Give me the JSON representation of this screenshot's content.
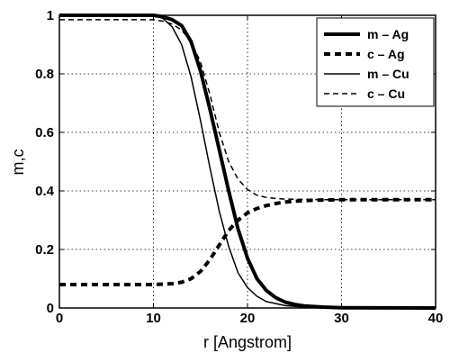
{
  "chart_data": {
    "type": "line",
    "xlabel": "r [Angstrom]",
    "ylabel": "m,c",
    "xlim": [
      0,
      40
    ],
    "ylim": [
      0,
      1
    ],
    "xticks": [
      0,
      10,
      20,
      30,
      40
    ],
    "yticks": [
      0,
      0.2,
      0.4,
      0.6,
      0.8,
      1
    ],
    "xtick_labels": [
      "0",
      "10",
      "20",
      "30",
      "40"
    ],
    "ytick_labels": [
      "0",
      "0.2",
      "0.4",
      "0.6",
      "0.8",
      "1"
    ],
    "grid": true,
    "legend_position": "top-right",
    "series": [
      {
        "name": "m – Ag",
        "style": "thick-solid",
        "x": [
          0,
          10,
          11,
          12,
          13,
          14,
          15,
          16,
          17,
          18,
          19,
          20,
          21,
          22,
          23,
          24,
          25,
          26,
          28,
          30,
          40
        ],
        "y": [
          1,
          1,
          0.995,
          0.985,
          0.965,
          0.91,
          0.81,
          0.68,
          0.54,
          0.4,
          0.27,
          0.17,
          0.1,
          0.06,
          0.035,
          0.02,
          0.012,
          0.007,
          0.003,
          0.001,
          0
        ]
      },
      {
        "name": "c – Ag",
        "style": "thick-dashed",
        "x": [
          0,
          10,
          12,
          13,
          14,
          15,
          16,
          17,
          18,
          19,
          20,
          21,
          22,
          23,
          24,
          26,
          28,
          30,
          40
        ],
        "y": [
          0.08,
          0.08,
          0.083,
          0.088,
          0.1,
          0.125,
          0.165,
          0.215,
          0.265,
          0.3,
          0.325,
          0.34,
          0.35,
          0.357,
          0.362,
          0.367,
          0.369,
          0.37,
          0.37
        ]
      },
      {
        "name": "m – Cu",
        "style": "thin-solid",
        "x": [
          0,
          10,
          11,
          12,
          13,
          14,
          15,
          16,
          17,
          18,
          19,
          20,
          21,
          22,
          24,
          26,
          28,
          30,
          40
        ],
        "y": [
          1,
          1,
          0.99,
          0.96,
          0.9,
          0.79,
          0.64,
          0.48,
          0.33,
          0.21,
          0.12,
          0.07,
          0.04,
          0.022,
          0.008,
          0.003,
          0.001,
          0,
          0
        ]
      },
      {
        "name": "c – Cu",
        "style": "thin-dashed",
        "x": [
          0,
          10,
          11,
          12,
          13,
          14,
          15,
          16,
          17,
          18,
          19,
          20,
          21,
          22,
          23,
          24,
          26,
          28,
          30,
          40
        ],
        "y": [
          0.985,
          0.985,
          0.98,
          0.97,
          0.95,
          0.91,
          0.84,
          0.73,
          0.6,
          0.5,
          0.44,
          0.405,
          0.385,
          0.378,
          0.374,
          0.372,
          0.371,
          0.37,
          0.37,
          0.37
        ]
      }
    ]
  }
}
